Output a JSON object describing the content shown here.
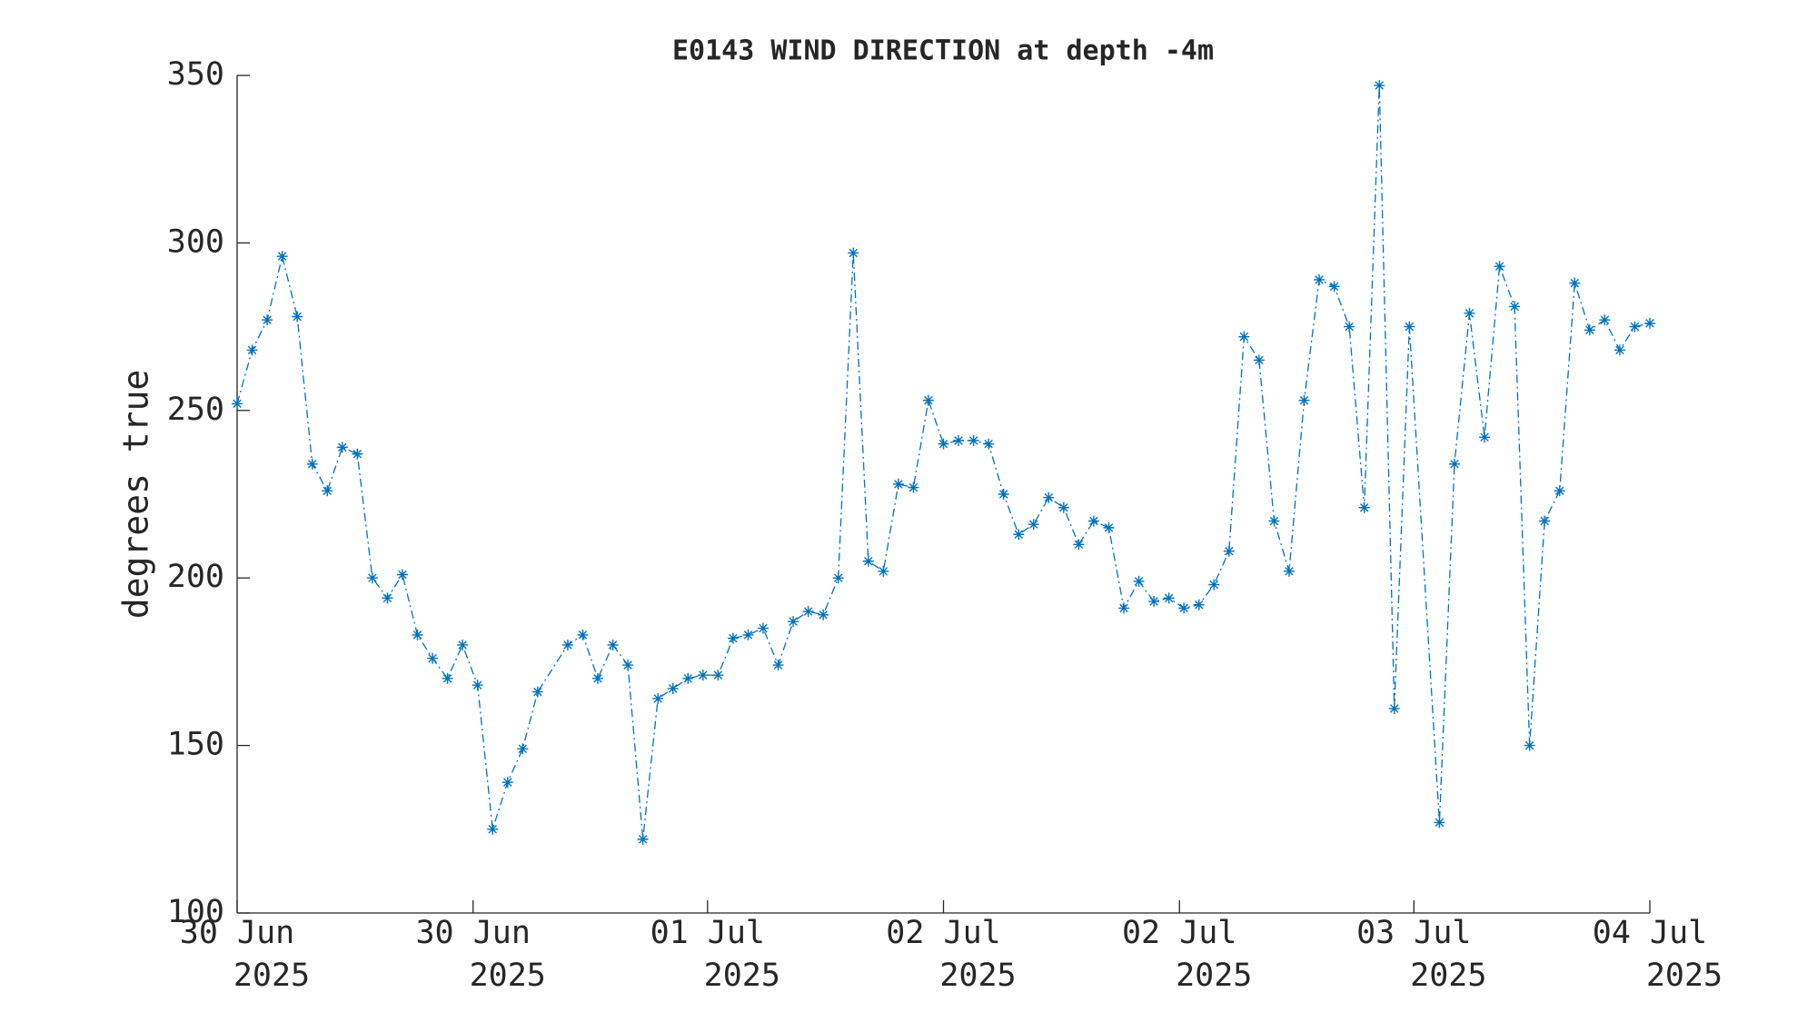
{
  "chart_data": {
    "type": "line",
    "title": "E0143 WIND DIRECTION at depth -4m",
    "y_label": "degrees true",
    "x": [
      0,
      1,
      2,
      3,
      4,
      5,
      6,
      7,
      8,
      9,
      10,
      11,
      12,
      13,
      14,
      15,
      16,
      17,
      18,
      19,
      20,
      22,
      23,
      24,
      25,
      26,
      27,
      28,
      29,
      30,
      31,
      32,
      33,
      34,
      35,
      36,
      37,
      38,
      39,
      40,
      41,
      42,
      43,
      44,
      45,
      46,
      47,
      48,
      49,
      50,
      51,
      52,
      53,
      54,
      55,
      56,
      57,
      58,
      59,
      60,
      61,
      62,
      63,
      64,
      65,
      66,
      67,
      68,
      69,
      70,
      71,
      72,
      73,
      74,
      75,
      76,
      77,
      78,
      80,
      81,
      82,
      83,
      84,
      85,
      86,
      87,
      88,
      89,
      90,
      91,
      92,
      93,
      94
    ],
    "series": [
      {
        "color": "#0072bd",
        "values": [
          252,
          268,
          277,
          296,
          278,
          234,
          226,
          239,
          237,
          200,
          194,
          201,
          183,
          176,
          170,
          180,
          168,
          125,
          139,
          149,
          166,
          180,
          183,
          170,
          180,
          174,
          122,
          164,
          167,
          170,
          171,
          171,
          182,
          183,
          185,
          174,
          187,
          190,
          189,
          200,
          297,
          205,
          202,
          228,
          227,
          253,
          240,
          241,
          241,
          240,
          225,
          213,
          216,
          224,
          221,
          210,
          217,
          215,
          191,
          199,
          193,
          194,
          191,
          192,
          198,
          208,
          272,
          265,
          217,
          202,
          253,
          289,
          287,
          275,
          221,
          347,
          161,
          275,
          127,
          234,
          279,
          242,
          293,
          281,
          150,
          217,
          226,
          288,
          274,
          277,
          268,
          275,
          276
        ]
      }
    ],
    "xlim": [
      0,
      94
    ],
    "xticks": [
      {
        "value": 0,
        "label": "30 Jun 2025"
      },
      {
        "value": 15.7,
        "label": "30 Jun 2025"
      },
      {
        "value": 31.3,
        "label": "01 Jul 2025"
      },
      {
        "value": 47,
        "label": "02 Jul 2025"
      },
      {
        "value": 62.7,
        "label": "02 Jul 2025"
      },
      {
        "value": 78.3,
        "label": "03 Jul 2025"
      },
      {
        "value": 94,
        "label": "04 Jul 2025"
      }
    ],
    "ylim": [
      100,
      350
    ],
    "yticks": [
      100,
      150,
      200,
      250,
      300,
      350
    ],
    "grid": false
  }
}
